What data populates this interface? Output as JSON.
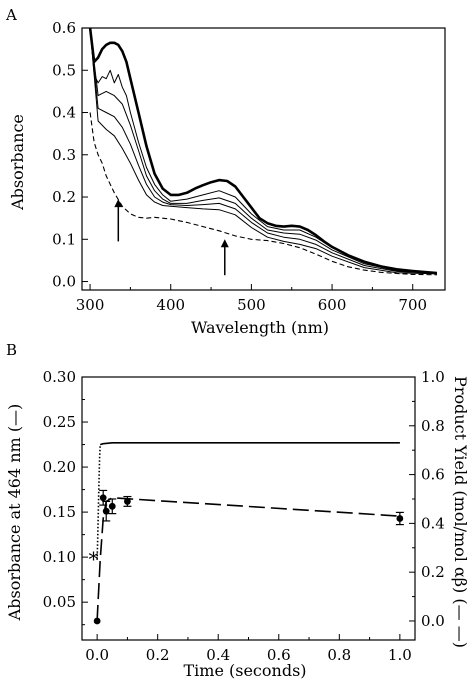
{
  "chart_data": [
    {
      "panel": "A",
      "type": "line",
      "xlabel": "Wavelength (nm)",
      "ylabel": "Absorbance",
      "xlim": [
        290,
        740
      ],
      "ylim": [
        -0.02,
        0.6
      ],
      "xticks": [
        300,
        400,
        500,
        600,
        700
      ],
      "yticks": [
        0.0,
        0.1,
        0.2,
        0.3,
        0.4,
        0.5,
        0.6
      ],
      "grid": false,
      "legend": "none",
      "series": [
        {
          "style": "bold solid",
          "x": [
            300,
            305,
            310,
            315,
            320,
            325,
            330,
            335,
            340,
            345,
            350,
            360,
            370,
            380,
            390,
            400,
            410,
            420,
            430,
            440,
            450,
            460,
            470,
            480,
            490,
            500,
            510,
            520,
            530,
            540,
            550,
            560,
            570,
            580,
            590,
            600,
            620,
            640,
            660,
            680,
            700,
            730
          ],
          "y": [
            0.6,
            0.52,
            0.53,
            0.55,
            0.56,
            0.565,
            0.565,
            0.56,
            0.545,
            0.52,
            0.48,
            0.4,
            0.32,
            0.255,
            0.22,
            0.205,
            0.205,
            0.21,
            0.22,
            0.228,
            0.235,
            0.24,
            0.238,
            0.225,
            0.2,
            0.175,
            0.15,
            0.138,
            0.132,
            0.13,
            0.132,
            0.13,
            0.122,
            0.11,
            0.095,
            0.082,
            0.062,
            0.047,
            0.036,
            0.029,
            0.025,
            0.02
          ]
        },
        {
          "style": "thin solid",
          "x": [
            300,
            305,
            310,
            315,
            320,
            325,
            330,
            335,
            340,
            345,
            350,
            360,
            370,
            380,
            390,
            400,
            420,
            440,
            460,
            480,
            500,
            520,
            540,
            560,
            580,
            600,
            640,
            680,
            730
          ],
          "y": [
            0.6,
            0.49,
            0.47,
            0.485,
            0.48,
            0.5,
            0.47,
            0.49,
            0.46,
            0.44,
            0.4,
            0.33,
            0.27,
            0.23,
            0.205,
            0.19,
            0.195,
            0.205,
            0.215,
            0.2,
            0.16,
            0.13,
            0.122,
            0.122,
            0.105,
            0.08,
            0.045,
            0.028,
            0.02
          ]
        },
        {
          "style": "thin solid",
          "x": [
            300,
            310,
            320,
            330,
            340,
            350,
            360,
            370,
            380,
            390,
            400,
            420,
            440,
            460,
            480,
            500,
            520,
            540,
            560,
            580,
            600,
            640,
            680,
            730
          ],
          "y": [
            0.6,
            0.44,
            0.45,
            0.44,
            0.42,
            0.37,
            0.31,
            0.25,
            0.215,
            0.195,
            0.185,
            0.185,
            0.192,
            0.198,
            0.185,
            0.15,
            0.122,
            0.115,
            0.112,
            0.098,
            0.075,
            0.042,
            0.026,
            0.02
          ]
        },
        {
          "style": "thin solid",
          "x": [
            300,
            310,
            320,
            330,
            340,
            350,
            360,
            370,
            380,
            390,
            400,
            420,
            440,
            460,
            480,
            500,
            520,
            540,
            560,
            580,
            600,
            640,
            680,
            730
          ],
          "y": [
            0.6,
            0.41,
            0.4,
            0.39,
            0.365,
            0.325,
            0.275,
            0.23,
            0.2,
            0.188,
            0.182,
            0.18,
            0.182,
            0.185,
            0.172,
            0.14,
            0.115,
            0.105,
            0.1,
            0.088,
            0.068,
            0.038,
            0.024,
            0.019
          ]
        },
        {
          "style": "thin solid",
          "x": [
            300,
            310,
            320,
            330,
            340,
            350,
            360,
            370,
            380,
            390,
            400,
            420,
            440,
            460,
            480,
            500,
            520,
            540,
            560,
            580,
            600,
            640,
            680,
            730
          ],
          "y": [
            0.6,
            0.38,
            0.36,
            0.345,
            0.315,
            0.28,
            0.24,
            0.205,
            0.188,
            0.18,
            0.178,
            0.175,
            0.172,
            0.17,
            0.158,
            0.128,
            0.105,
            0.095,
            0.088,
            0.078,
            0.06,
            0.033,
            0.021,
            0.018
          ]
        },
        {
          "style": "dashed",
          "x": [
            300,
            305,
            310,
            315,
            320,
            330,
            340,
            350,
            360,
            370,
            380,
            390,
            400,
            420,
            440,
            460,
            480,
            500,
            520,
            540,
            560,
            580,
            600,
            620,
            640,
            660,
            680,
            700,
            730
          ],
          "y": [
            0.4,
            0.33,
            0.3,
            0.28,
            0.25,
            0.21,
            0.178,
            0.16,
            0.152,
            0.15,
            0.152,
            0.15,
            0.148,
            0.14,
            0.13,
            0.12,
            0.108,
            0.1,
            0.097,
            0.09,
            0.08,
            0.065,
            0.048,
            0.035,
            0.027,
            0.022,
            0.019,
            0.017,
            0.016
          ]
        }
      ],
      "annotations": [
        {
          "type": "arrow-up",
          "x": 335,
          "from_y": 0.095,
          "to_y": 0.195
        },
        {
          "type": "arrow-up",
          "x": 467,
          "from_y": 0.015,
          "to_y": 0.1
        }
      ]
    },
    {
      "panel": "B",
      "type": "line",
      "xlabel": "Time (seconds)",
      "ylabel": "Absorbance at 464 nm (—)",
      "ylabel_right": "Product Yield (mol/mol αβ) (— —)",
      "xlim": [
        -0.05,
        1.05
      ],
      "ylim": [
        0.008,
        0.3
      ],
      "ylim_right": [
        -0.078,
        1.0
      ],
      "xticks": [
        0.0,
        0.2,
        0.4,
        0.6,
        0.8,
        1.0
      ],
      "yticks": [
        0.05,
        0.1,
        0.15,
        0.2,
        0.25,
        0.3
      ],
      "yticks_right": [
        0.0,
        0.2,
        0.4,
        0.6,
        0.8,
        1.0
      ],
      "grid": false,
      "legend": "none",
      "series": [
        {
          "style": "dotted",
          "axis": "left",
          "x": [
            0.0,
            0.002,
            0.004,
            0.006,
            0.008,
            0.01
          ],
          "y": [
            0.097,
            0.12,
            0.15,
            0.185,
            0.21,
            0.225
          ]
        },
        {
          "style": "solid",
          "axis": "left",
          "x": [
            0.01,
            0.02,
            0.05,
            1.0
          ],
          "y": [
            0.225,
            0.226,
            0.227,
            0.227
          ]
        },
        {
          "style": "long-dash",
          "axis": "right",
          "x": [
            0.0,
            0.01,
            0.02,
            0.03,
            0.05,
            1.0
          ],
          "y": [
            0.0,
            0.25,
            0.42,
            0.49,
            0.505,
            0.43
          ]
        },
        {
          "style": "markers",
          "axis": "right",
          "x": [
            0.0,
            0.02,
            0.03,
            0.05,
            0.1,
            1.0
          ],
          "y": [
            0.0,
            0.505,
            0.45,
            0.47,
            0.49,
            0.42
          ],
          "err": [
            0,
            0.03,
            0.04,
            0.03,
            0.02,
            0.025
          ]
        }
      ],
      "annotations": [
        {
          "type": "text",
          "text": "*",
          "x": -0.012,
          "y": 0.1
        }
      ]
    }
  ]
}
